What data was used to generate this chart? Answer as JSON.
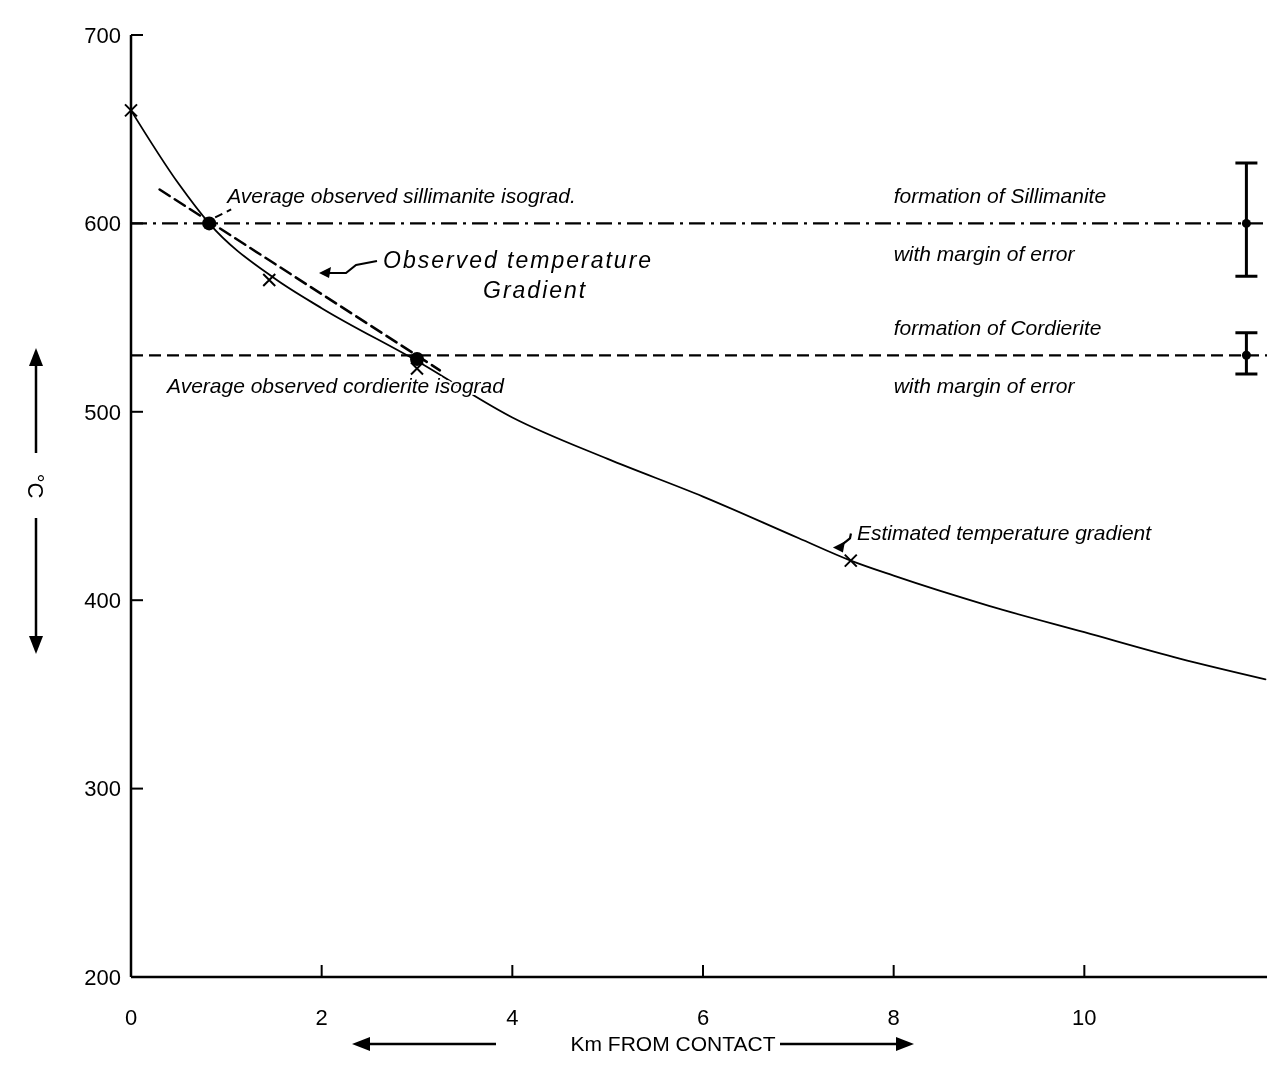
{
  "chart_data": {
    "type": "line",
    "xlabel": "Km FROM CONTACT",
    "ylabel": "°C",
    "xlim": [
      0,
      12
    ],
    "ylim": [
      200,
      700
    ],
    "xticks": [
      0,
      2,
      4,
      6,
      8,
      10
    ],
    "yticks": [
      200,
      300,
      400,
      500,
      600,
      700
    ],
    "grid": false,
    "series": [
      {
        "color": "#000000",
        "line_style": "solid",
        "marker": "none",
        "x": [
          0,
          0.5,
          0.82,
          1.5,
          2,
          3,
          4,
          5,
          6,
          7,
          7.55,
          8,
          9,
          10,
          11,
          11.9
        ],
        "values": [
          660,
          621,
          600,
          571,
          555,
          527,
          497,
          475,
          455,
          433,
          421,
          413,
          397,
          383,
          369,
          358
        ]
      },
      {
        "color": "#000000",
        "line_style": "dashed",
        "marker": "none",
        "x": [
          0.3,
          3.24
        ],
        "values": [
          618,
          522
        ]
      },
      {
        "type": "scatter",
        "color": "#000000",
        "marker": "circle",
        "x": [
          0.82,
          3.0
        ],
        "values": [
          600,
          528
        ]
      },
      {
        "type": "scatter",
        "color": "#000000",
        "marker": "cross",
        "x": [
          0,
          1.45,
          3.0,
          7.55
        ],
        "values": [
          660,
          570,
          523,
          421
        ]
      },
      {
        "type": "scatter",
        "color": "#000000",
        "marker": "circle",
        "x": [
          11.7,
          11.7
        ],
        "values": [
          600,
          530
        ],
        "errors": [
          [
            572,
            632
          ],
          [
            520,
            542
          ]
        ]
      }
    ],
    "ref_lines": [
      {
        "axis": "y",
        "value": 600,
        "label": "formation of  Sillimanite",
        "line_style": "dashdot",
        "color": "#000000"
      },
      {
        "axis": "y",
        "value": 530,
        "label": "formation of Cordierite",
        "line_style": "dashed",
        "color": "#000000"
      }
    ],
    "annotations": [
      {
        "text": "Average observed sillimanite isograd.",
        "x": 0.82,
        "y": 600
      },
      "Observed  temperature Gradient",
      {
        "text": "Average observed cordierite isograd",
        "x": 3.0,
        "y": 528
      },
      {
        "text": "Estimated temperature  gradient",
        "x": 7.3,
        "y": 428
      },
      {
        "text": "with margin of error",
        "x": 8,
        "y": 600
      },
      {
        "text": "with margin of error",
        "x": 8,
        "y": 530
      }
    ]
  }
}
